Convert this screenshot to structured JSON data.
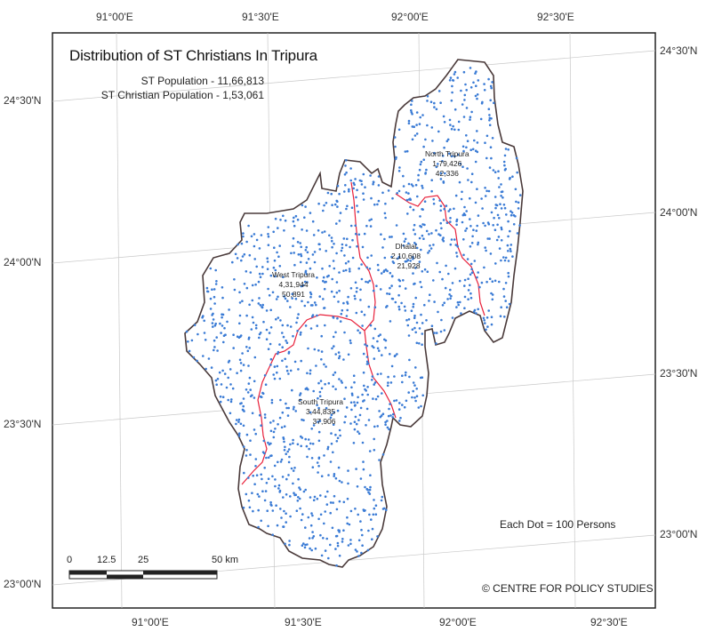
{
  "map": {
    "title": "Distribution of ST Christians In Tripura",
    "st_population": "ST Population - 11,66,813",
    "st_christian_population": "ST Christian Population - 1,53,061",
    "legend": "Each Dot = 100 Persons",
    "credit": "© CENTRE FOR POLICY STUDIES",
    "dot_color": "#3a7bd5",
    "boundary_color": "#4a3a3a",
    "inner_boundary_color": "#e8203a",
    "graticule": {
      "top": [
        "91°00'E",
        "91°30'E",
        "92°00'E",
        "92°30'E"
      ],
      "bottom": [
        "91°00'E",
        "91°30'E",
        "92°00'E",
        "92°30'E"
      ],
      "left": [
        "24°30'N",
        "24°00'N",
        "23°30'N",
        "23°00'N"
      ],
      "right": [
        "24°30'N",
        "24°00'N",
        "23°30'N",
        "23°00'N"
      ]
    },
    "districts": [
      {
        "name": "North Tripura",
        "st_population": "1,79,426",
        "christians": "42,336"
      },
      {
        "name": "Dhalai",
        "st_population": "2,10,608",
        "christians": "21,928"
      },
      {
        "name": "West Tripura",
        "st_population": "4,31,944",
        "christians": "50,891"
      },
      {
        "name": "South Tripura",
        "st_population": "3,44,835",
        "christians": "37,906"
      }
    ],
    "scalebar": {
      "ticks": [
        "0",
        "12.5",
        "25",
        "50"
      ],
      "unit": "km"
    }
  }
}
